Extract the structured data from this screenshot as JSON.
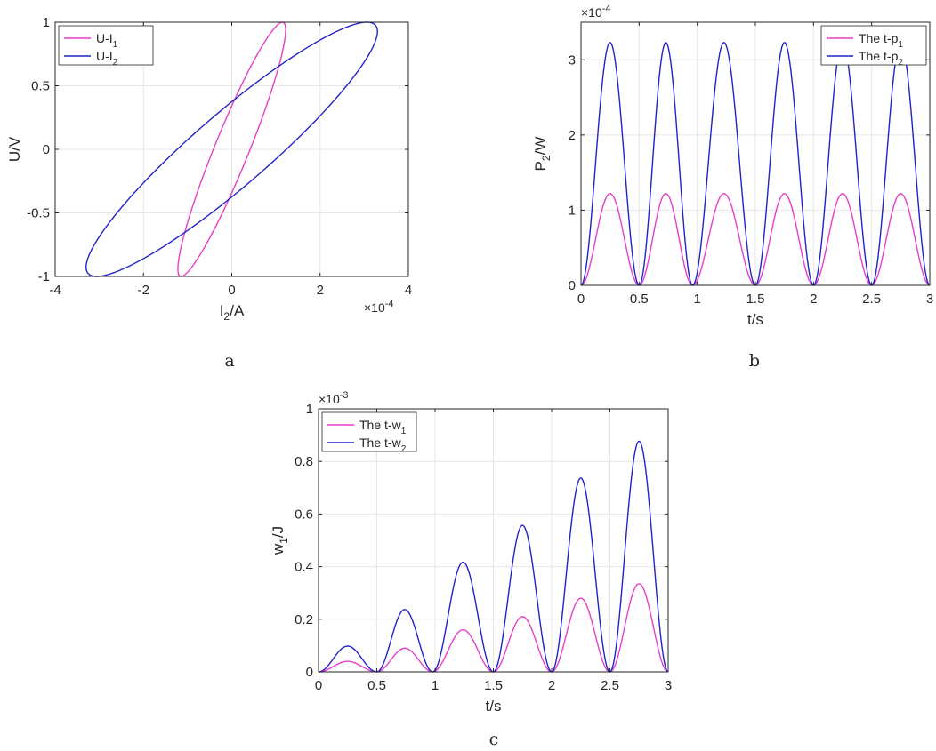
{
  "charts": [
    {
      "id": "a",
      "type": "line",
      "caption": "a",
      "xlabel_main": "I",
      "xlabel_sub": "2",
      "xlabel_tail": "/A",
      "ylabel_main": "U/V",
      "ylabel_sub": "",
      "ylabel_tail": "",
      "exponent_base": "×10",
      "exponent_power": "-4",
      "exponent_position": "bottom-right",
      "xlim": [
        -4,
        4
      ],
      "ylim": [
        -1,
        1
      ],
      "xticks": [
        -4,
        -2,
        0,
        2,
        4
      ],
      "yticks": [
        -1,
        -0.5,
        0,
        0.5,
        1
      ],
      "xtick_labels": [
        "-4",
        "-2",
        "0",
        "2",
        "4"
      ],
      "ytick_labels": [
        "-1",
        "-0.5",
        "0",
        "0.5",
        "1"
      ],
      "grid": true,
      "legend_position": "top-left",
      "curve": "hysteresis_loop",
      "series": [
        {
          "name_main": "U-I",
          "name_sub": "1",
          "color": "#e83ec7",
          "amplitude": 1.22,
          "phase_shift_deg": 20,
          "points": 160
        },
        {
          "name_main": "U-I",
          "name_sub": "2",
          "color": "#2222cc",
          "amplitude": 3.3,
          "phase_shift_deg": 22,
          "points": 160
        }
      ]
    },
    {
      "id": "b",
      "type": "line",
      "caption": "b",
      "xlabel_main": "t/s",
      "xlabel_sub": "",
      "xlabel_tail": "",
      "ylabel_main": "P",
      "ylabel_sub": "2",
      "ylabel_tail": "/W",
      "exponent_base": "×10",
      "exponent_power": "-4",
      "exponent_position": "top-left",
      "xlim": [
        0,
        3
      ],
      "ylim": [
        0,
        3.5
      ],
      "xticks": [
        0,
        0.5,
        1,
        1.5,
        2,
        2.5,
        3
      ],
      "yticks": [
        0,
        1,
        2,
        3
      ],
      "xtick_labels": [
        "0",
        "0.5",
        "1",
        "1.5",
        "2",
        "2.5",
        "3"
      ],
      "ytick_labels": [
        "0",
        "1",
        "2",
        "3"
      ],
      "grid": true,
      "legend_position": "top-right",
      "curve": "power_lobes",
      "lobe_boundaries": [
        0,
        0.5,
        0.96,
        1.5,
        2.0,
        2.5,
        3.0
      ],
      "series": [
        {
          "name_main": "The t-p",
          "name_sub": "1",
          "color": "#e83ec7",
          "peak": 1.22,
          "samples": 400
        },
        {
          "name_main": "The t-p",
          "name_sub": "2",
          "color": "#2222cc",
          "peak": 3.23,
          "samples": 400
        }
      ]
    },
    {
      "id": "c",
      "type": "line",
      "caption": "c",
      "xlabel_main": "t/s",
      "xlabel_sub": "",
      "xlabel_tail": "",
      "ylabel_main": "w",
      "ylabel_sub": "1",
      "ylabel_tail": "/J",
      "exponent_base": "×10",
      "exponent_power": "-3",
      "exponent_position": "top-left",
      "xlim": [
        0,
        3
      ],
      "ylim": [
        0,
        1
      ],
      "xticks": [
        0,
        0.5,
        1,
        1.5,
        2,
        2.5,
        3
      ],
      "yticks": [
        0,
        0.2,
        0.4,
        0.6,
        0.8,
        1
      ],
      "xtick_labels": [
        "0",
        "0.5",
        "1",
        "1.5",
        "2",
        "2.5",
        "3"
      ],
      "ytick_labels": [
        "0",
        "0.2",
        "0.4",
        "0.6",
        "0.8",
        "1"
      ],
      "grid": true,
      "legend_position": "top-left",
      "curve": "energy_lobes",
      "lobe_boundaries": [
        0,
        0.5,
        0.98,
        1.5,
        2.0,
        2.5,
        3.0
      ],
      "series": [
        {
          "name_main": "The t-w",
          "name_sub": "1",
          "color": "#e83ec7",
          "peaks": [
            0.04,
            0.09,
            0.16,
            0.21,
            0.28,
            0.335
          ],
          "samples": 400
        },
        {
          "name_main": "The t-w",
          "name_sub": "2",
          "color": "#2222cc",
          "peaks": [
            0.098,
            0.237,
            0.417,
            0.557,
            0.737,
            0.877
          ],
          "samples": 400
        }
      ]
    }
  ]
}
